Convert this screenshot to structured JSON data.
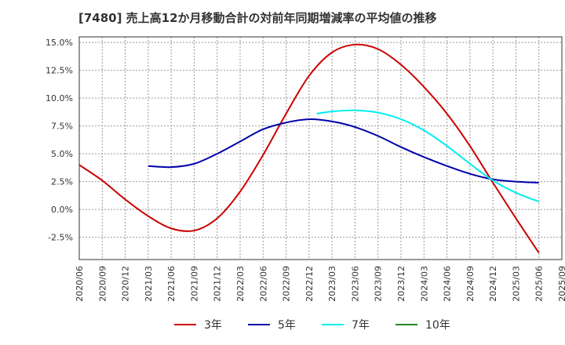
{
  "chart_data": {
    "type": "line",
    "title": "[7480]  売上高12か月移動合計の対前年同期増減率の平均値の推移",
    "xlabel": "",
    "ylabel": "",
    "ylim": [
      -4.5,
      15.5
    ],
    "y_ticks": [
      15.0,
      12.5,
      10.0,
      7.5,
      5.0,
      2.5,
      0.0,
      -2.5
    ],
    "y_tick_labels": [
      "15.0%",
      "12.5%",
      "10.0%",
      "7.5%",
      "5.0%",
      "2.5%",
      "0.0%",
      "-2.5%"
    ],
    "x_ticks": [
      "2020/06",
      "2020/09",
      "2020/12",
      "2021/03",
      "2021/06",
      "2021/09",
      "2021/12",
      "2022/03",
      "2022/06",
      "2022/09",
      "2022/12",
      "2023/03",
      "2023/06",
      "2023/09",
      "2023/12",
      "2024/03",
      "2024/06",
      "2024/09",
      "2024/12",
      "2025/03",
      "2025/06",
      "2025/09"
    ],
    "grid": true,
    "legend_position": "bottom",
    "series": [
      {
        "name": "3年",
        "color": "#cc0000",
        "points": [
          [
            "2020/06",
            4.0
          ],
          [
            "2020/09",
            2.6
          ],
          [
            "2020/12",
            0.9
          ],
          [
            "2021/03",
            -0.6
          ],
          [
            "2021/06",
            -1.7
          ],
          [
            "2021/09",
            -1.9
          ],
          [
            "2021/12",
            -0.8
          ],
          [
            "2022/03",
            1.6
          ],
          [
            "2022/06",
            4.9
          ],
          [
            "2022/09",
            8.6
          ],
          [
            "2022/12",
            12.0
          ],
          [
            "2023/03",
            14.1
          ],
          [
            "2023/06",
            14.8
          ],
          [
            "2023/09",
            14.4
          ],
          [
            "2023/12",
            13.0
          ],
          [
            "2024/03",
            11.0
          ],
          [
            "2024/06",
            8.6
          ],
          [
            "2024/09",
            5.7
          ],
          [
            "2024/12",
            2.4
          ],
          [
            "2025/03",
            -0.8
          ],
          [
            "2025/06",
            -3.9
          ]
        ]
      },
      {
        "name": "5年",
        "color": "#0000aa",
        "points": [
          [
            "2021/03",
            3.9
          ],
          [
            "2021/06",
            3.8
          ],
          [
            "2021/09",
            4.1
          ],
          [
            "2021/12",
            5.0
          ],
          [
            "2022/03",
            6.1
          ],
          [
            "2022/06",
            7.2
          ],
          [
            "2022/09",
            7.8
          ],
          [
            "2022/12",
            8.1
          ],
          [
            "2023/03",
            7.9
          ],
          [
            "2023/06",
            7.4
          ],
          [
            "2023/09",
            6.6
          ],
          [
            "2023/12",
            5.6
          ],
          [
            "2024/03",
            4.7
          ],
          [
            "2024/06",
            3.9
          ],
          [
            "2024/09",
            3.2
          ],
          [
            "2024/12",
            2.7
          ],
          [
            "2025/03",
            2.5
          ],
          [
            "2025/06",
            2.4
          ]
        ]
      },
      {
        "name": "7年",
        "color": "#00eeee",
        "points": [
          [
            "2023/01",
            8.6
          ],
          [
            "2023/03",
            8.8
          ],
          [
            "2023/06",
            8.9
          ],
          [
            "2023/09",
            8.7
          ],
          [
            "2023/12",
            8.1
          ],
          [
            "2024/03",
            7.1
          ],
          [
            "2024/06",
            5.7
          ],
          [
            "2024/09",
            4.1
          ],
          [
            "2024/12",
            2.6
          ],
          [
            "2025/03",
            1.5
          ],
          [
            "2025/06",
            0.7
          ]
        ]
      },
      {
        "name": "10年",
        "color": "#228b22",
        "points": []
      }
    ]
  }
}
